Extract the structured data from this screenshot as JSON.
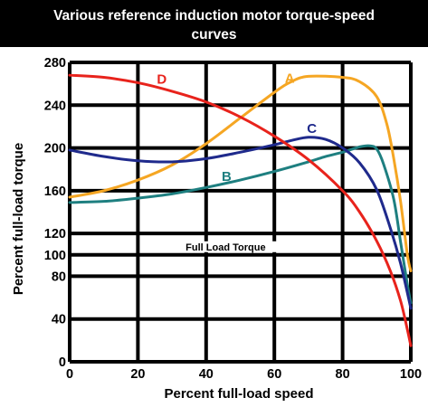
{
  "chart_data": {
    "type": "line",
    "title": "Various reference induction motor torque-speed curves",
    "title_lines": [
      "Various reference induction motor torque-speed",
      "curves"
    ],
    "xlabel": "Percent full-load speed",
    "ylabel": "Percent full-load torque",
    "xlim": [
      0,
      100
    ],
    "ylim": [
      0,
      280
    ],
    "x_ticks": [
      0,
      20,
      40,
      60,
      80,
      100
    ],
    "y_ticks": [
      0,
      40,
      80,
      100,
      120,
      160,
      200,
      240,
      280
    ],
    "grid": true,
    "annotation": {
      "text": "Full Load Torque",
      "y": 100
    },
    "colors": {
      "title_background": "#000000",
      "plot_background": "#ffffff",
      "grid": "#000000"
    },
    "series": [
      {
        "name": "A",
        "color": "#f5a623",
        "points": [
          [
            0,
            154
          ],
          [
            10,
            160
          ],
          [
            20,
            170
          ],
          [
            30,
            184
          ],
          [
            40,
            204
          ],
          [
            50,
            228
          ],
          [
            60,
            252
          ],
          [
            65,
            262
          ],
          [
            70,
            267
          ],
          [
            80,
            266
          ],
          [
            85,
            262
          ],
          [
            90,
            248
          ],
          [
            93,
            222
          ],
          [
            95,
            190
          ],
          [
            97,
            150
          ],
          [
            99,
            100
          ],
          [
            100,
            85
          ]
        ]
      },
      {
        "name": "B",
        "color": "#1e7f80",
        "points": [
          [
            0,
            149
          ],
          [
            10,
            150
          ],
          [
            20,
            153
          ],
          [
            30,
            157
          ],
          [
            40,
            163
          ],
          [
            50,
            170
          ],
          [
            60,
            178
          ],
          [
            70,
            187
          ],
          [
            75,
            192
          ],
          [
            80,
            196
          ],
          [
            85,
            201
          ],
          [
            88,
            202
          ],
          [
            90,
            199
          ],
          [
            92,
            185
          ],
          [
            95,
            152
          ],
          [
            97,
            112
          ],
          [
            99,
            72
          ],
          [
            100,
            55
          ]
        ]
      },
      {
        "name": "C",
        "color": "#1f2a8c",
        "points": [
          [
            0,
            198
          ],
          [
            10,
            192
          ],
          [
            20,
            188
          ],
          [
            30,
            187
          ],
          [
            40,
            190
          ],
          [
            50,
            196
          ],
          [
            60,
            203
          ],
          [
            65,
            207
          ],
          [
            70,
            210
          ],
          [
            75,
            208
          ],
          [
            80,
            200
          ],
          [
            85,
            186
          ],
          [
            90,
            161
          ],
          [
            94,
            125
          ],
          [
            97,
            92
          ],
          [
            100,
            50
          ]
        ]
      },
      {
        "name": "D",
        "color": "#e8231c",
        "points": [
          [
            0,
            268
          ],
          [
            10,
            266
          ],
          [
            20,
            261
          ],
          [
            30,
            253
          ],
          [
            40,
            243
          ],
          [
            50,
            229
          ],
          [
            60,
            211
          ],
          [
            70,
            189
          ],
          [
            80,
            160
          ],
          [
            85,
            140
          ],
          [
            90,
            113
          ],
          [
            94,
            85
          ],
          [
            97,
            57
          ],
          [
            99,
            30
          ],
          [
            100,
            15
          ]
        ]
      }
    ]
  }
}
